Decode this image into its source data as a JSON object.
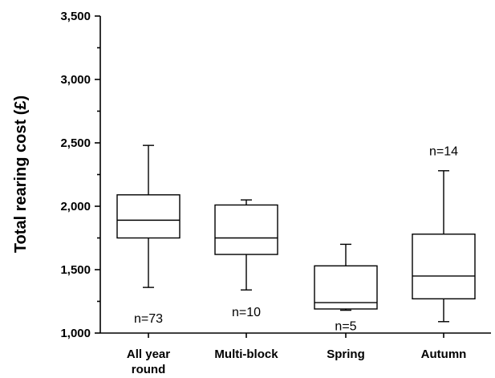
{
  "chart_data": {
    "type": "box",
    "ylabel": "Total rearing cost (£)",
    "ylim": [
      1000,
      3500
    ],
    "yticks": [
      {
        "value": 1000,
        "label": "1,000"
      },
      {
        "value": 1500,
        "label": "1,500"
      },
      {
        "value": 2000,
        "label": "2,000"
      },
      {
        "value": 2500,
        "label": "2,500"
      },
      {
        "value": 3000,
        "label": "3,000"
      },
      {
        "value": 3500,
        "label": "3,500"
      }
    ],
    "categories": [
      {
        "label_lines": [
          "All year",
          "round"
        ],
        "min": 1360,
        "q1": 1750,
        "median": 1890,
        "q3": 2090,
        "max": 2480,
        "n_label": "n=73",
        "n_label_y": 1120
      },
      {
        "label_lines": [
          "Multi-block"
        ],
        "min": 1340,
        "q1": 1620,
        "median": 1750,
        "q3": 2010,
        "max": 2050,
        "n_label": "n=10",
        "n_label_y": 1170
      },
      {
        "label_lines": [
          "Spring"
        ],
        "min": 1180,
        "q1": 1190,
        "median": 1240,
        "q3": 1530,
        "max": 1700,
        "n_label": "n=5",
        "n_label_y": 1060
      },
      {
        "label_lines": [
          "Autumn"
        ],
        "min": 1090,
        "q1": 1270,
        "median": 1450,
        "q3": 1780,
        "max": 2280,
        "n_label": "n=14",
        "n_label_y": 2440
      }
    ]
  }
}
